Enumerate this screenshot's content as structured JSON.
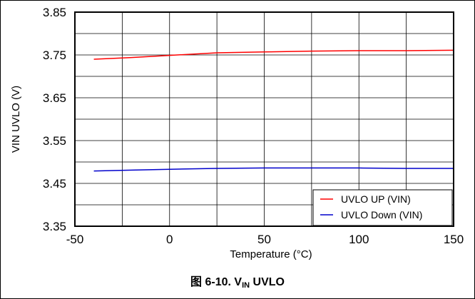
{
  "chart_data": {
    "type": "line",
    "xlabel": "Temperature (°C)",
    "ylabel": "VIN UVLO (V)",
    "xlim": [
      -50,
      150
    ],
    "ylim": [
      3.35,
      3.85
    ],
    "xticks": [
      "-50",
      "0",
      "50",
      "100",
      "150"
    ],
    "yticks": [
      "3.35",
      "3.45",
      "3.55",
      "3.65",
      "3.75",
      "3.85"
    ],
    "grid": true,
    "legend_position": "bottom-right",
    "series": [
      {
        "name": "UVLO UP (VIN)",
        "color": "#ff0000",
        "x": [
          -40,
          -20,
          0,
          25,
          50,
          75,
          100,
          125,
          150
        ],
        "y": [
          3.74,
          3.744,
          3.749,
          3.755,
          3.757,
          3.759,
          3.76,
          3.76,
          3.761
        ]
      },
      {
        "name": "UVLO Down (VIN)",
        "color": "#0000cc",
        "x": [
          -40,
          -20,
          0,
          25,
          50,
          75,
          100,
          125,
          150
        ],
        "y": [
          3.479,
          3.481,
          3.483,
          3.485,
          3.486,
          3.486,
          3.486,
          3.485,
          3.485
        ]
      }
    ]
  },
  "caption": {
    "prefix": "图 6-10. V",
    "subscript": "IN",
    "suffix": " UVLO"
  }
}
